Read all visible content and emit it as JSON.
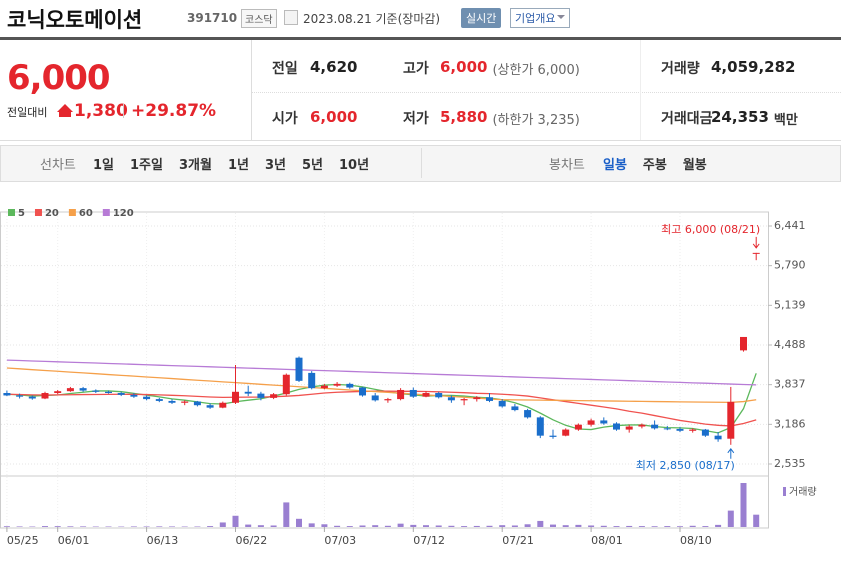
{
  "header": {
    "name": "코닉오토메이션",
    "code": "391710",
    "market": "코스닥",
    "date": "2023.08.21 기준(장마감)",
    "realtime": "실시간",
    "overview": "기업개요"
  },
  "quote": {
    "price": "6,000",
    "change_label": "전일대비",
    "change": "1,380",
    "change_rate": "+29.87%"
  },
  "summary": [
    [
      {
        "label": "전일",
        "value": "4,620"
      },
      {
        "label": "고가",
        "value": "6,000",
        "note": "(상한가 6,000)"
      },
      {
        "label": "거래량",
        "value": "4,059,282"
      }
    ],
    [
      {
        "label": "시가",
        "value": "6,000"
      },
      {
        "label": "저가",
        "value": "5,880",
        "note": "(하한가 3,235)"
      },
      {
        "label": "거래대금",
        "value": "24,353",
        "unit": "백만"
      }
    ]
  ],
  "tabs": {
    "line_label": "선차트",
    "line_periods": [
      "1일",
      "1주일",
      "3개월",
      "1년",
      "3년",
      "5년",
      "10년"
    ],
    "candle_label": "봉차트",
    "candle_periods": [
      "일봉",
      "주봉",
      "월봉"
    ],
    "active_candle_period": 0
  },
  "chart_data": {
    "type": "candlestick",
    "up_color": "#e4262d",
    "down_color": "#1a6ecb",
    "grid": true,
    "categories": [
      "05/25",
      null,
      null,
      null,
      "06/01",
      null,
      null,
      null,
      null,
      null,
      null,
      "06/13",
      null,
      null,
      null,
      null,
      null,
      null,
      "06/22",
      null,
      null,
      null,
      null,
      null,
      null,
      "07/03",
      null,
      null,
      null,
      null,
      null,
      null,
      "07/12",
      null,
      null,
      null,
      null,
      null,
      null,
      "07/21",
      null,
      null,
      null,
      null,
      null,
      null,
      "08/01",
      null,
      null,
      null,
      null,
      null,
      null,
      "08/10",
      null,
      null,
      null,
      null,
      null,
      null
    ],
    "open": [
      3700,
      3660,
      3640,
      3610,
      3700,
      3730,
      3780,
      3740,
      3720,
      3700,
      3670,
      3640,
      3600,
      3570,
      3540,
      3560,
      3500,
      3460,
      3540,
      3720,
      3690,
      3620,
      3680,
      4280,
      4030,
      3780,
      3820,
      3850,
      3790,
      3660,
      3580,
      3600,
      3750,
      3640,
      3700,
      3630,
      3580,
      3600,
      3630,
      3570,
      3480,
      3420,
      3300,
      3000,
      3000,
      3100,
      3180,
      3250,
      3200,
      3100,
      3150,
      3180,
      3120,
      3110,
      3080,
      3100,
      3000,
      2950,
      4400,
      6000
    ],
    "high": [
      3740,
      3690,
      3660,
      3720,
      3750,
      3800,
      3800,
      3760,
      3740,
      3720,
      3700,
      3660,
      3620,
      3600,
      3580,
      3570,
      3530,
      3560,
      4160,
      3820,
      3720,
      3700,
      4020,
      4300,
      4060,
      3850,
      3880,
      3870,
      3800,
      3700,
      3620,
      3780,
      3790,
      3730,
      3720,
      3660,
      3620,
      3650,
      3700,
      3600,
      3520,
      3440,
      3320,
      3100,
      3120,
      3200,
      3280,
      3300,
      3220,
      3180,
      3200,
      3250,
      3160,
      3140,
      3120,
      3110,
      3060,
      3800,
      4620,
      6000
    ],
    "low": [
      3650,
      3610,
      3590,
      3600,
      3680,
      3720,
      3720,
      3700,
      3690,
      3650,
      3620,
      3580,
      3550,
      3520,
      3500,
      3480,
      3440,
      3450,
      3520,
      3650,
      3580,
      3600,
      3660,
      3880,
      3760,
      3760,
      3800,
      3770,
      3640,
      3560,
      3540,
      3580,
      3620,
      3630,
      3610,
      3540,
      3500,
      3560,
      3550,
      3460,
      3400,
      3280,
      2960,
      2950,
      2990,
      3080,
      3150,
      3180,
      3080,
      3050,
      3120,
      3100,
      3090,
      3060,
      3050,
      2980,
      2900,
      2850,
      4380,
      5880
    ],
    "close": [
      3660,
      3640,
      3610,
      3700,
      3730,
      3780,
      3740,
      3720,
      3700,
      3670,
      3640,
      3600,
      3570,
      3540,
      3560,
      3500,
      3460,
      3540,
      3720,
      3690,
      3620,
      3680,
      4000,
      3900,
      3780,
      3820,
      3850,
      3790,
      3660,
      3580,
      3600,
      3750,
      3640,
      3700,
      3630,
      3580,
      3600,
      3630,
      3570,
      3480,
      3420,
      3300,
      3000,
      2980,
      3100,
      3180,
      3250,
      3200,
      3100,
      3150,
      3180,
      3120,
      3110,
      3080,
      3100,
      3000,
      2940,
      3555,
      4620,
      6000
    ],
    "series": [
      {
        "name": "5",
        "color": "#5cb85c",
        "values": [
          3680,
          3670,
          3650,
          3660,
          3668,
          3692,
          3712,
          3734,
          3734,
          3722,
          3694,
          3666,
          3636,
          3604,
          3582,
          3554,
          3526,
          3520,
          3556,
          3582,
          3606,
          3650,
          3700,
          3760,
          3800,
          3830,
          3840,
          3830,
          3800,
          3760,
          3720,
          3690,
          3670,
          3650,
          3660,
          3660,
          3650,
          3630,
          3620,
          3590,
          3540,
          3470,
          3370,
          3260,
          3170,
          3110,
          3100,
          3140,
          3166,
          3176,
          3176,
          3150,
          3132,
          3128,
          3118,
          3082,
          3046,
          3135,
          3443,
          4023
        ]
      },
      {
        "name": "20",
        "color": "#f0524f",
        "values": [
          3680,
          3675,
          3670,
          3668,
          3670,
          3672,
          3675,
          3676,
          3678,
          3680,
          3678,
          3675,
          3670,
          3662,
          3655,
          3645,
          3635,
          3628,
          3630,
          3632,
          3633,
          3640,
          3648,
          3660,
          3680,
          3700,
          3712,
          3720,
          3726,
          3730,
          3730,
          3728,
          3728,
          3725,
          3720,
          3712,
          3705,
          3695,
          3690,
          3680,
          3668,
          3650,
          3620,
          3590,
          3560,
          3530,
          3500,
          3470,
          3440,
          3400,
          3370,
          3330,
          3290,
          3250,
          3220,
          3190,
          3170,
          3160,
          3200,
          3260
        ]
      },
      {
        "name": "60",
        "color": "#f5a04a",
        "values": [
          4110,
          4097,
          4083,
          4070,
          4057,
          4043,
          4030,
          4017,
          4003,
          3990,
          3977,
          3963,
          3950,
          3937,
          3923,
          3910,
          3897,
          3883,
          3870,
          3857,
          3843,
          3830,
          3817,
          3803,
          3790,
          3777,
          3763,
          3750,
          3737,
          3723,
          3710,
          3697,
          3683,
          3670,
          3657,
          3643,
          3630,
          3617,
          3603,
          3590,
          3588,
          3585,
          3583,
          3580,
          3578,
          3575,
          3573,
          3570,
          3568,
          3565,
          3563,
          3560,
          3558,
          3555,
          3553,
          3550,
          3548,
          3546,
          3560,
          3590
        ]
      },
      {
        "name": "120",
        "color": "#b77bd6",
        "values": [
          4240,
          4233,
          4226,
          4219,
          4212,
          4205,
          4199,
          4192,
          4185,
          4178,
          4171,
          4164,
          4157,
          4150,
          4143,
          4137,
          4130,
          4123,
          4116,
          4109,
          4102,
          4095,
          4088,
          4081,
          4074,
          4068,
          4061,
          4054,
          4047,
          4040,
          4033,
          4026,
          4019,
          4012,
          4005,
          3999,
          3992,
          3985,
          3978,
          3971,
          3964,
          3957,
          3950,
          3943,
          3936,
          3930,
          3923,
          3916,
          3909,
          3902,
          3895,
          3888,
          3881,
          3874,
          3867,
          3861,
          3854,
          3847,
          3840,
          3834
        ]
      }
    ],
    "volume": {
      "name": "거래량",
      "color": "#9a7fd1",
      "values": [
        250000,
        180000,
        150000,
        300000,
        280000,
        220000,
        200000,
        150000,
        160000,
        140000,
        180000,
        170000,
        200000,
        180000,
        150000,
        160000,
        300000,
        1500000,
        3700000,
        800000,
        600000,
        500000,
        8100000,
        2700000,
        1200000,
        900000,
        400000,
        300000,
        500000,
        600000,
        400000,
        1100000,
        700000,
        600000,
        500000,
        400000,
        300000,
        350000,
        400000,
        600000,
        500000,
        900000,
        2000000,
        800000,
        600000,
        700000,
        500000,
        400000,
        300000,
        350000,
        300000,
        250000,
        300000,
        250000,
        400000,
        300000,
        700000,
        5400000,
        14500000,
        4059282
      ]
    },
    "ylim": [
      2535,
      6441
    ],
    "yticks": [
      {
        "value": 2535,
        "label": "2,535"
      },
      {
        "value": 3186,
        "label": "3,186"
      },
      {
        "value": 3837,
        "label": "3,837"
      },
      {
        "value": 4488,
        "label": "4,488"
      },
      {
        "value": 5139,
        "label": "5,139"
      },
      {
        "value": 5790,
        "label": "5,790"
      },
      {
        "value": 6441,
        "label": "6,441"
      }
    ],
    "high_annotation": "최고 6,000 (08/21)",
    "low_annotation": "최저 2,850 (08/17)"
  }
}
